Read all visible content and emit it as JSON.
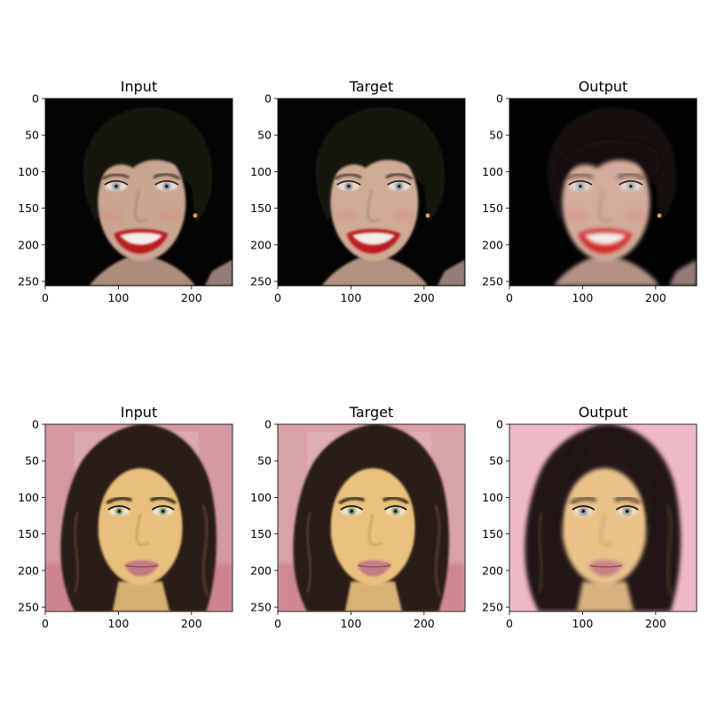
{
  "figure": {
    "panels": [
      {
        "title": "Input",
        "image": {
          "subject": "smiling woman with short dark hair and red lipstick",
          "background": "#050403",
          "hair": "#161210",
          "skin": "#c9a592",
          "lips": "#b81c1e",
          "eyes": "#7a8796"
        }
      },
      {
        "title": "Target",
        "image": {
          "subject": "smiling woman with short dark hair and red lipstick",
          "background": "#050403",
          "hair": "#161210",
          "skin": "#cfab96",
          "lips": "#bb1e20",
          "eyes": "#7a8796"
        }
      },
      {
        "title": "Output",
        "image": {
          "subject": "smiling woman with short dark hair and red lipstick, smoothed",
          "background": "#020202",
          "hair": "#141010",
          "skin": "#d2ab9b",
          "lips": "#d32a2a",
          "eyes": "#8290a0"
        }
      },
      {
        "title": "Input",
        "image": {
          "subject": "woman with long wavy dark hair and pink lips",
          "background": "#d49aa2",
          "hair": "#2b1c16",
          "skin": "#e8c07c",
          "lips": "#c07a82",
          "eyes": "#6f8a58"
        }
      },
      {
        "title": "Target",
        "image": {
          "subject": "woman with long wavy dark hair and pink lips",
          "background": "#d8a2a8",
          "hair": "#2a1b14",
          "skin": "#eac27e",
          "lips": "#c27c84",
          "eyes": "#6f8a58"
        }
      },
      {
        "title": "Output",
        "image": {
          "subject": "woman with long wavy dark hair and pink lips, smoothed",
          "background": "#efb8c6",
          "hair": "#231914",
          "skin": "#eac28a",
          "lips": "#c98088",
          "eyes": "#5a6878"
        }
      }
    ],
    "axes": {
      "y_ticks": [
        "0",
        "50",
        "100",
        "150",
        "200",
        "250"
      ],
      "x_ticks": [
        "0",
        "100",
        "200"
      ],
      "y_tick_values": [
        0,
        50,
        100,
        150,
        200,
        250
      ],
      "x_tick_values": [
        0,
        100,
        200
      ],
      "range": [
        0,
        256
      ]
    }
  }
}
